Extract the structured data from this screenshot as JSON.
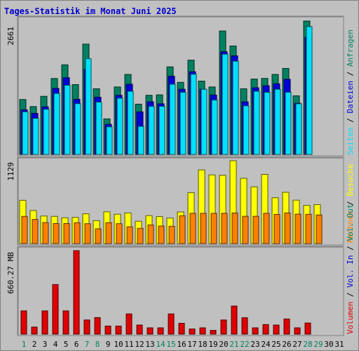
{
  "title": "Tages-Statistik im Monat Juni 2025",
  "colors": {
    "anfragen": "#008060",
    "dateien": "#0000d8",
    "seiten": "#00e0ff",
    "besuche": "#ffff00",
    "rechner": "#ff8000",
    "volumen": "#e00000",
    "weekend_day": "#008060",
    "weekday": "#000000"
  },
  "legend": {
    "anfragen": "Anfragen",
    "dateien": "Dateien",
    "seiten": "Seiten",
    "besuche": "Besuche",
    "rechner": "Rechner",
    "volumen": "Volumen",
    "in": "In",
    "out": "Out",
    "sep": "/",
    "vol_prefix": "Vol."
  },
  "chart_data": {
    "type": "bar",
    "days": [
      "1",
      "2",
      "3",
      "4",
      "5",
      "6",
      "7",
      "8",
      "9",
      "10",
      "11",
      "12",
      "13",
      "14",
      "15",
      "16",
      "17",
      "18",
      "19",
      "20",
      "21",
      "22",
      "23",
      "24",
      "25",
      "26",
      "27",
      "28",
      "29",
      "30",
      "31"
    ],
    "weekend_days": [
      "1",
      "7",
      "8",
      "14",
      "15",
      "21",
      "22",
      "28",
      "29"
    ],
    "panels": [
      {
        "name": "requests",
        "max_label": "2661",
        "ymax": 2661,
        "series": [
          {
            "name": "Anfragen",
            "values": [
              1096,
              955,
              1160,
              1515,
              1788,
              1393,
              2201,
              1310,
              710,
              1346,
              1596,
              1003,
              1180,
              1189,
              1747,
              1438,
              1881,
              1463,
              1346,
              2463,
              2164,
              1310,
              1504,
              1517,
              1596,
              1716,
              1170,
              2661,
              0,
              0,
              0
            ]
          },
          {
            "name": "Dateien",
            "values": [
              890,
              820,
              950,
              1318,
              1530,
              1100,
              1700,
              1143,
              600,
              1179,
              1400,
              850,
              1050,
              1010,
              1560,
              1300,
              1650,
              1300,
              1185,
              2050,
              1968,
              1050,
              1330,
              1370,
              1410,
              1500,
              1020,
              2337,
              0,
              0,
              0
            ]
          },
          {
            "name": "Seiten",
            "values": [
              850,
              720,
              900,
              1216,
              1380,
              1013,
              1910,
              1044,
              550,
              1123,
              1260,
              560,
              960,
              960,
              1400,
              1240,
              1600,
              1300,
              1085,
              2000,
              1860,
              970,
              1260,
              1240,
              1300,
              1240,
              1010,
              2550,
              0,
              0,
              0
            ]
          }
        ]
      },
      {
        "name": "visits",
        "max_label": "1129",
        "ymax": 1129,
        "series": [
          {
            "name": "Besuche",
            "values": [
              590,
              451,
              376,
              371,
              352,
              358,
              406,
              313,
              433,
              400,
              418,
              305,
              381,
              368,
              348,
              431,
              694,
              1004,
              936,
              931,
              1129,
              890,
              774,
              943,
              625,
              699,
              592,
              521,
              531,
              0,
              0
            ]
          },
          {
            "name": "Rechner",
            "values": [
              371,
              329,
              286,
              273,
              273,
              284,
              271,
              201,
              285,
              271,
              229,
              208,
              254,
              239,
              236,
              379,
              413,
              413,
              412,
              413,
              417,
              372,
              372,
              413,
              397,
              418,
              401,
              399,
              390,
              0,
              0
            ]
          }
        ]
      },
      {
        "name": "traffic",
        "max_label": "660.27 MB",
        "ymax": 660.27,
        "series": [
          {
            "name": "Volumen",
            "values": [
              184,
              56,
              184,
              392,
              184,
              660,
              112,
              131,
              64,
              64,
              160,
              72,
              50,
              50,
              160,
              86,
              41,
              50,
              30,
              112,
              222,
              130,
              50,
              76,
              72,
              120,
              50,
              88,
              0,
              0,
              0
            ]
          }
        ]
      }
    ]
  }
}
